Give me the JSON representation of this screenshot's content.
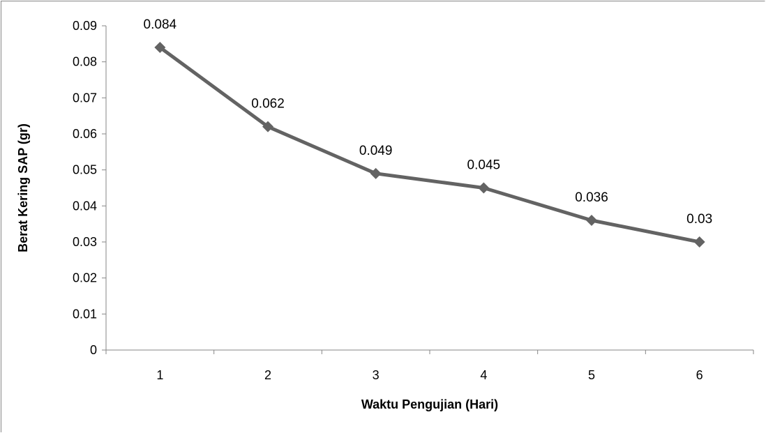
{
  "chart_data": {
    "type": "line",
    "title": "",
    "xlabel": "Waktu Pengujian (Hari)",
    "ylabel": "Berat Kering SAP (gr)",
    "categories": [
      "1",
      "2",
      "3",
      "4",
      "5",
      "6"
    ],
    "series": [
      {
        "values": [
          0.084,
          0.062,
          0.049,
          0.045,
          0.036,
          0.03
        ],
        "data_labels": [
          "0.084",
          "0.062",
          "0.049",
          "0.045",
          "0.036",
          "0.03"
        ],
        "color": "#636363",
        "marker": "diamond"
      }
    ],
    "ylim": [
      0,
      0.09
    ],
    "y_ticks": [
      0,
      0.01,
      0.02,
      0.03,
      0.04,
      0.05,
      0.06,
      0.07,
      0.08,
      0.09
    ],
    "y_tick_labels": [
      "0",
      "0.01",
      "0.02",
      "0.03",
      "0.04",
      "0.05",
      "0.06",
      "0.07",
      "0.08",
      "0.09"
    ],
    "grid": false,
    "legend": "none",
    "colors": {
      "line": "#636363",
      "axis": "#868686",
      "border": "#868686"
    }
  }
}
